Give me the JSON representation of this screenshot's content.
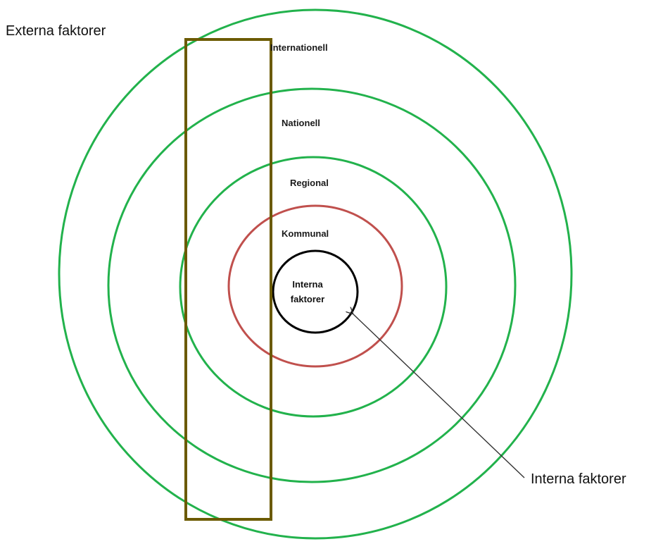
{
  "labels": {
    "external_title": "Externa faktorer",
    "internal_title": "Interna faktorer",
    "ring_international": "Internationell",
    "ring_national": "Nationell",
    "ring_regional": "Regional",
    "ring_municipal": "Kommunal",
    "center_line1": "Interna",
    "center_line2": "faktorer"
  },
  "colors": {
    "outer_rings": "#22b24c",
    "municipal_ring": "#c0504d",
    "center_ring": "#000000",
    "highlight_rect": "#6b5a00",
    "arrow": "#333333"
  }
}
